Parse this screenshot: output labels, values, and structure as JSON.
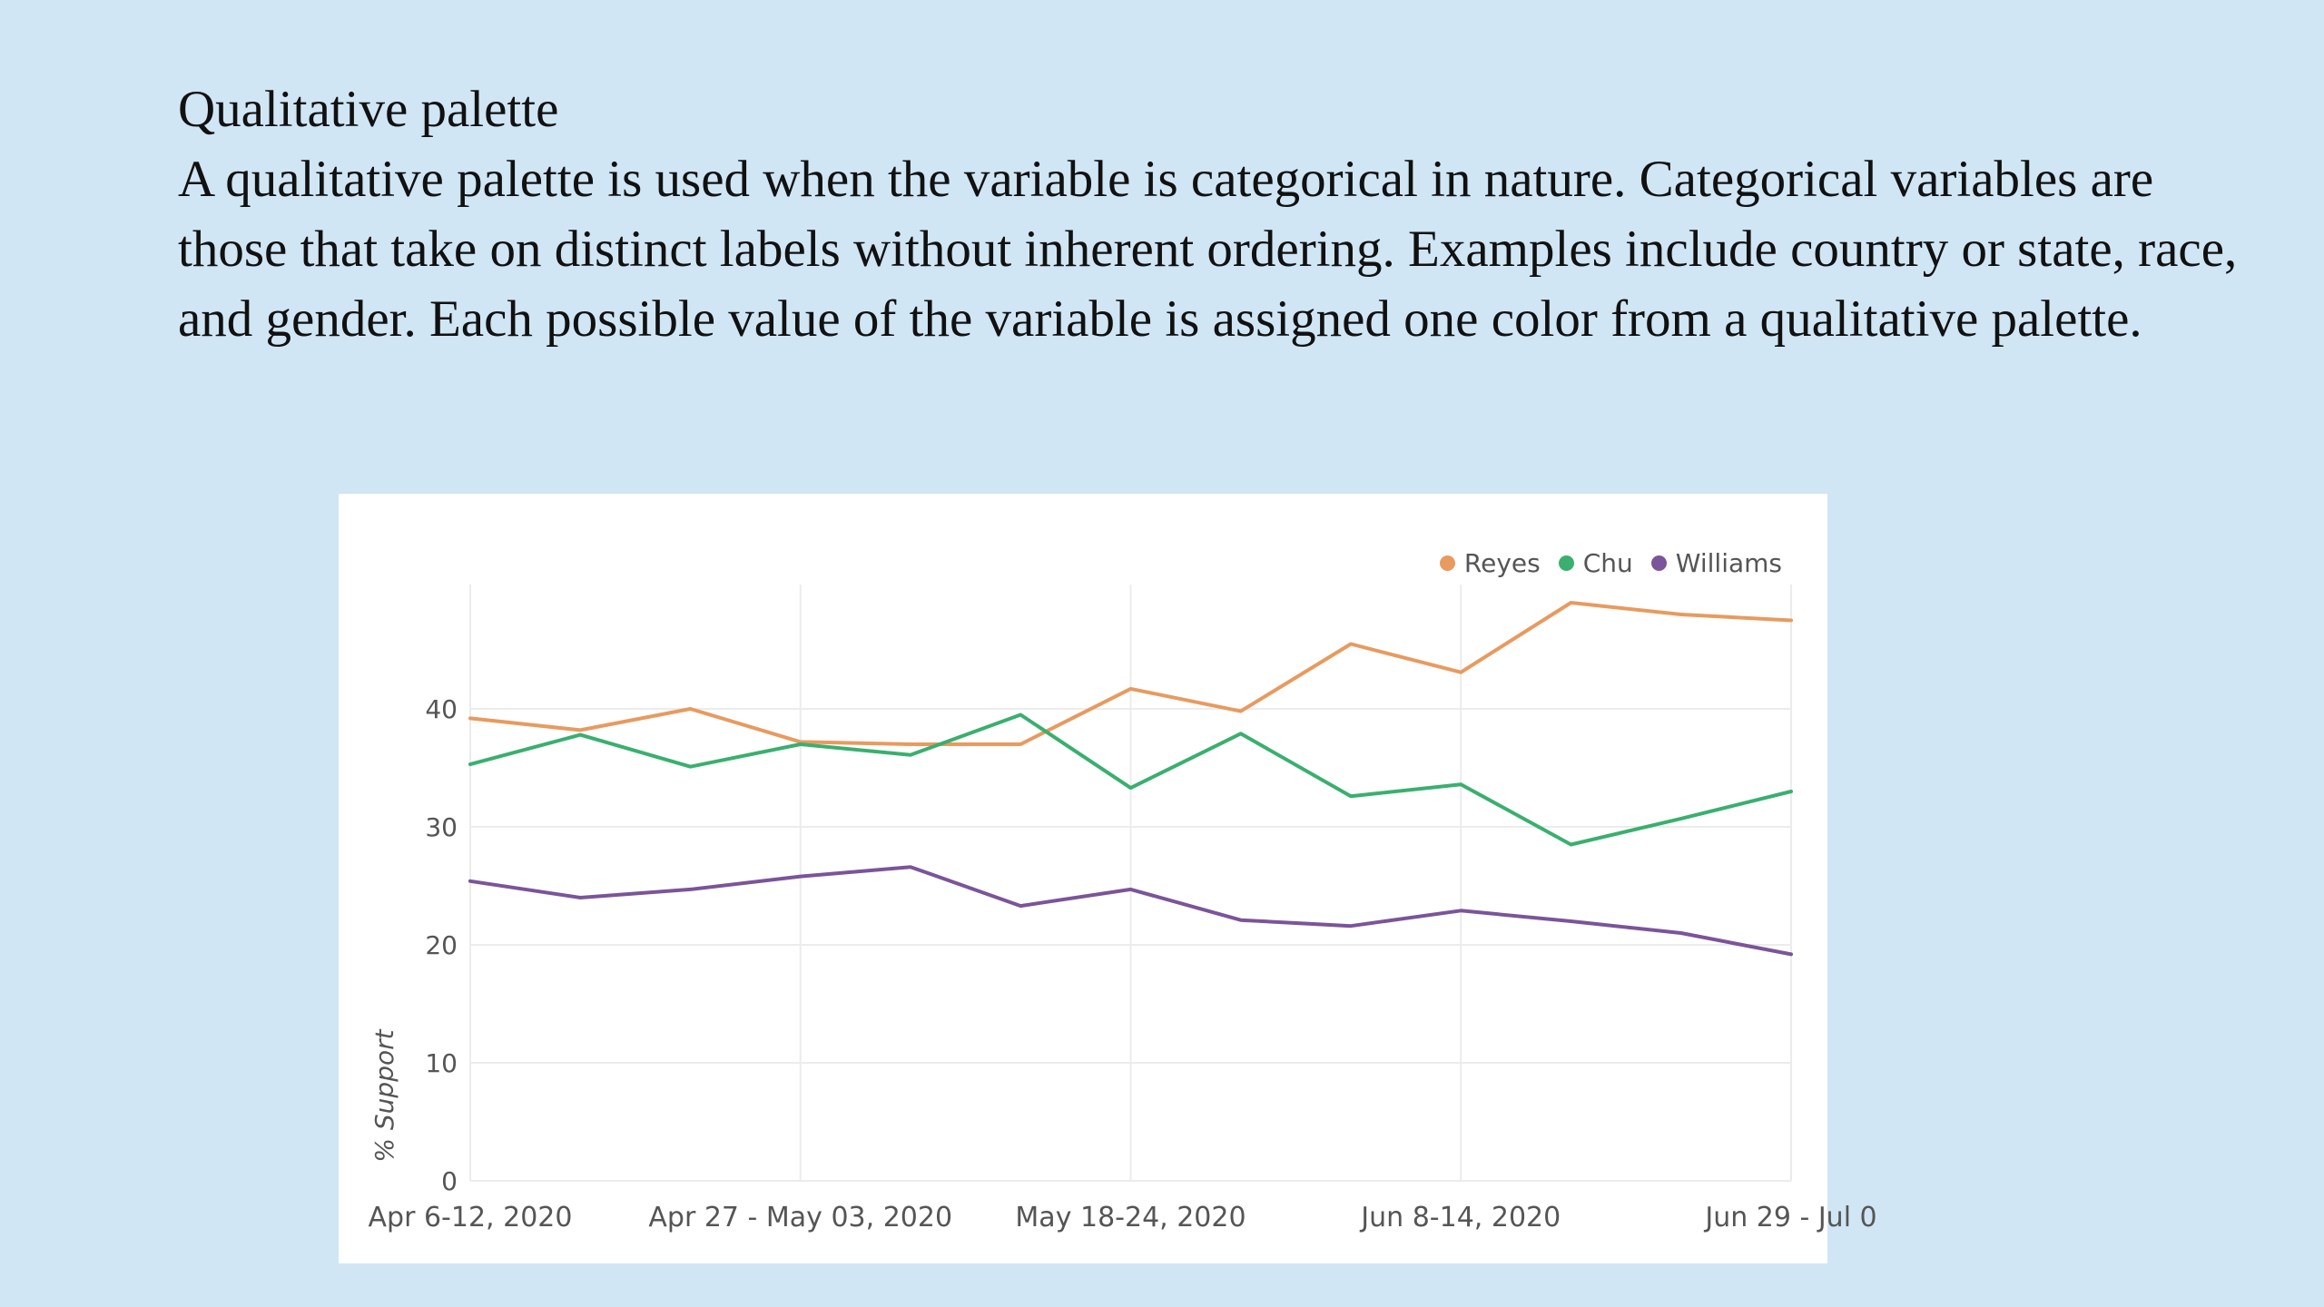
{
  "slide": {
    "title": "Qualitative palette",
    "body": "A qualitative palette is used when the variable is categorical in nature. Categorical variables are those that take on distinct labels without inherent ordering. Examples include country or state, race, and gender. Each possible value of the variable is assigned one color from a qualitative palette."
  },
  "chart_data": {
    "type": "line",
    "title": "",
    "xlabel": "",
    "ylabel": "% Support",
    "ylim": [
      0,
      49
    ],
    "yticks": [
      0,
      10,
      20,
      30,
      40
    ],
    "grid": true,
    "legend_position": "top-right",
    "x_tick_labels": [
      {
        "index": 0,
        "label": "Apr 6-12, 2020"
      },
      {
        "index": 3,
        "label": "Apr 27 - May 03, 2020"
      },
      {
        "index": 6,
        "label": "May 18-24, 2020"
      },
      {
        "index": 9,
        "label": "Jun 8-14, 2020"
      },
      {
        "index": 12,
        "label": "Jun 29 - Jul 0"
      }
    ],
    "n_points": 13,
    "series": [
      {
        "name": "Reyes",
        "color": "#e89a5f",
        "values": [
          39.2,
          38.2,
          40.0,
          37.2,
          37.0,
          37.0,
          41.7,
          39.8,
          45.5,
          43.1,
          49.0,
          48.0,
          47.5
        ]
      },
      {
        "name": "Chu",
        "color": "#3aaf6f",
        "values": [
          35.3,
          37.8,
          35.1,
          37.0,
          36.1,
          39.5,
          33.3,
          37.9,
          32.6,
          33.6,
          28.5,
          30.7,
          33.0
        ]
      },
      {
        "name": "Williams",
        "color": "#7b5499",
        "values": [
          25.4,
          24.0,
          24.7,
          25.8,
          26.6,
          23.3,
          24.7,
          22.1,
          21.6,
          22.9,
          22.0,
          21.0,
          19.2
        ]
      }
    ]
  }
}
